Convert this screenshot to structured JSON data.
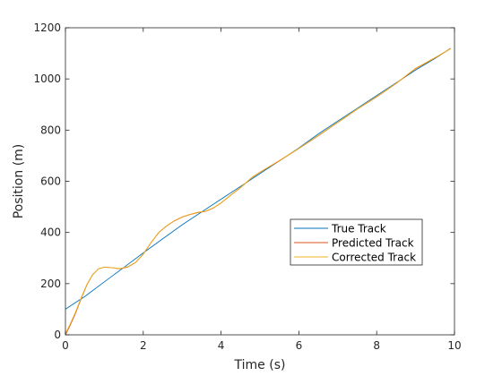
{
  "chart_data": {
    "type": "line",
    "title": "",
    "xlabel": "Time (s)",
    "ylabel": "Position (m)",
    "xlim": [
      0,
      10
    ],
    "ylim": [
      0,
      1200
    ],
    "xticks": [
      0,
      2,
      4,
      6,
      8,
      10
    ],
    "yticks": [
      0,
      200,
      400,
      600,
      800,
      1000,
      1200
    ],
    "grid": false,
    "legend_position": "lower-right",
    "series": [
      {
        "name": "True Track",
        "color": "#0072BD",
        "x": [
          0,
          0.5,
          1,
          1.5,
          2,
          2.5,
          3,
          3.5,
          4,
          4.5,
          5,
          5.5,
          6,
          6.5,
          7,
          7.5,
          8,
          8.5,
          9,
          9.5,
          9.9
        ],
        "y": [
          100,
          150,
          207,
          263,
          320,
          375,
          430,
          480,
          530,
          580,
          630,
          680,
          730,
          785,
          835,
          885,
          935,
          985,
          1035,
          1080,
          1120
        ]
      },
      {
        "name": "Predicted Track",
        "color": "#D95319",
        "x": [
          0,
          0.1,
          0.25,
          0.4,
          0.55,
          0.7,
          0.85,
          1,
          1.2,
          1.4,
          1.6,
          1.8,
          2,
          2.2,
          2.4,
          2.6,
          2.8,
          3,
          3.2,
          3.4,
          3.6,
          3.8,
          4,
          4.2,
          4.5,
          4.8,
          5,
          5.5,
          6,
          6.5,
          7,
          7.5,
          8,
          8.5,
          9,
          9.5,
          9.9
        ],
        "y": [
          0,
          30,
          80,
          140,
          195,
          235,
          258,
          265,
          262,
          258,
          265,
          282,
          315,
          360,
          400,
          425,
          445,
          460,
          470,
          478,
          482,
          495,
          515,
          540,
          575,
          615,
          635,
          680,
          728,
          778,
          830,
          882,
          930,
          982,
          1040,
          1082,
          1118
        ]
      },
      {
        "name": "Corrected Track",
        "color": "#EDB120",
        "x": [
          0,
          0.1,
          0.25,
          0.4,
          0.55,
          0.7,
          0.85,
          1,
          1.2,
          1.4,
          1.6,
          1.8,
          2,
          2.2,
          2.4,
          2.6,
          2.8,
          3,
          3.2,
          3.4,
          3.6,
          3.8,
          4,
          4.2,
          4.5,
          4.8,
          5,
          5.5,
          6,
          6.5,
          7,
          7.5,
          8,
          8.5,
          9,
          9.5,
          9.9
        ],
        "y": [
          5,
          35,
          85,
          143,
          197,
          236,
          258,
          264,
          262,
          259,
          266,
          283,
          316,
          361,
          401,
          426,
          446,
          461,
          471,
          479,
          483,
          496,
          516,
          541,
          576,
          616,
          636,
          681,
          729,
          779,
          831,
          883,
          931,
          983,
          1042,
          1083,
          1119
        ]
      }
    ]
  }
}
